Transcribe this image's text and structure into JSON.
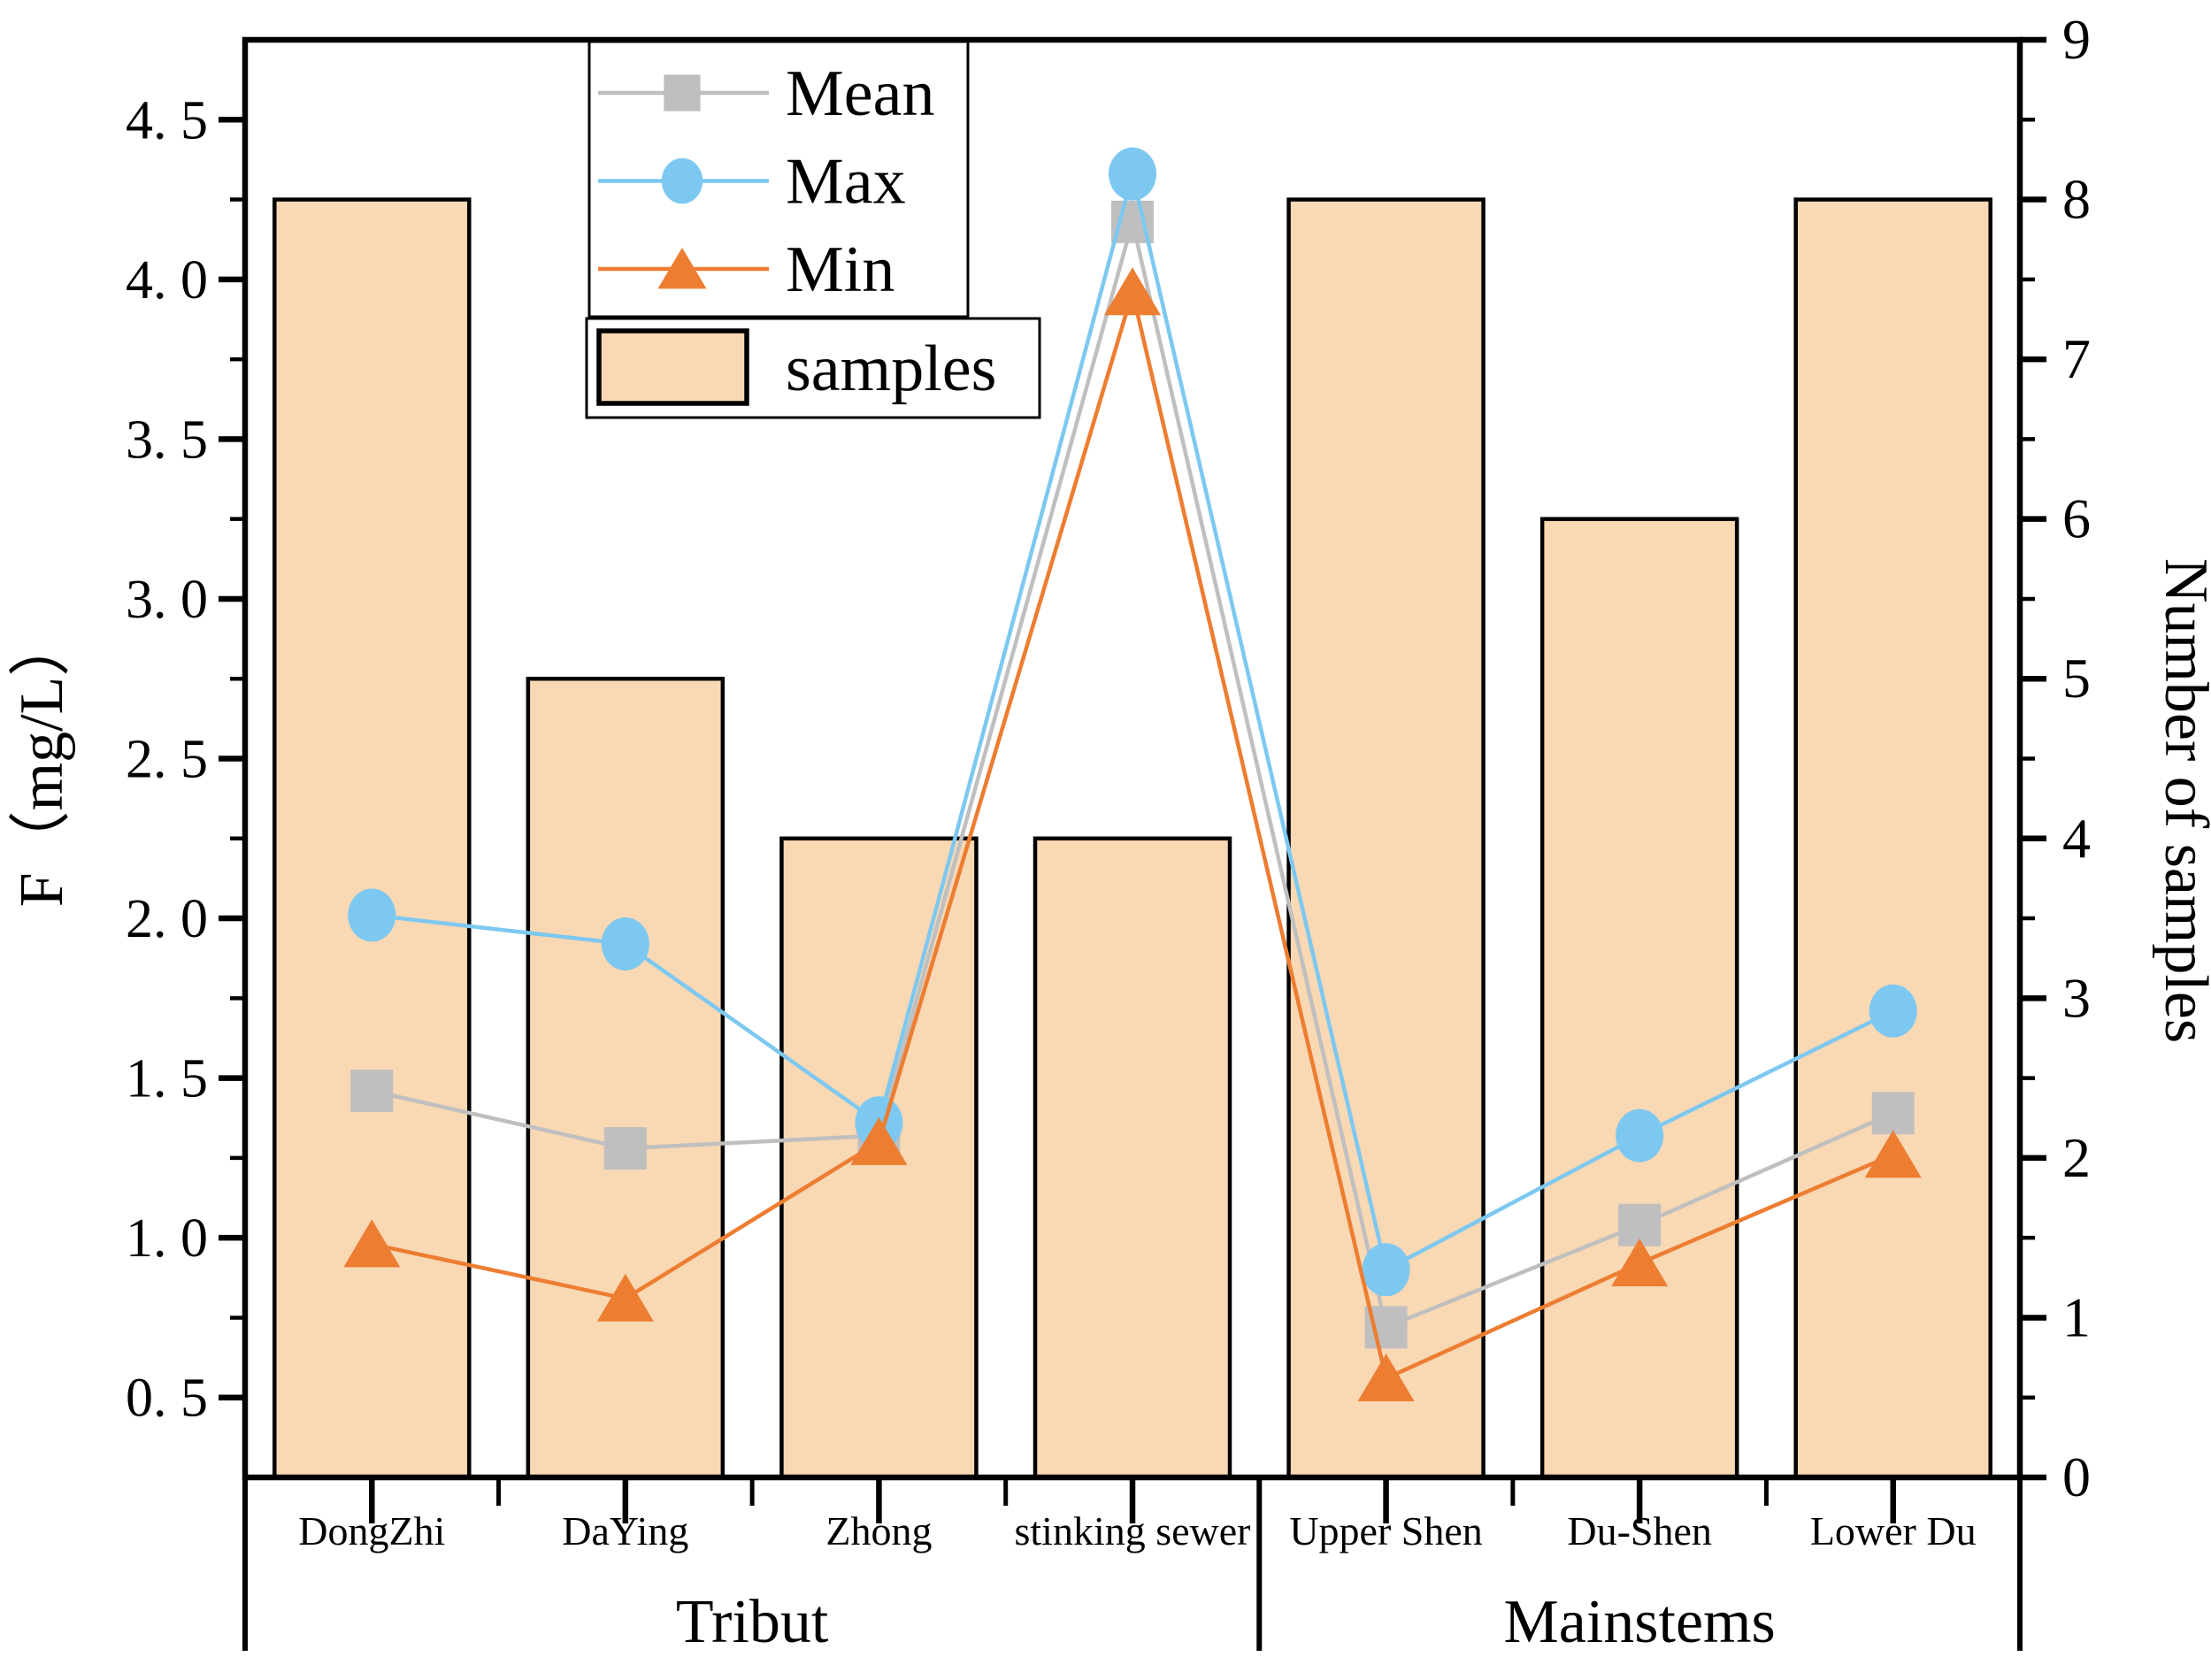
{
  "chart_data": {
    "type": "bar",
    "subtype": "composite-bar-line",
    "title": "",
    "categories": [
      "DongZhi",
      "DaYing",
      "Zhong",
      "stinking sewer",
      "Upper Shen",
      "Du-Shen",
      "Lower Du"
    ],
    "groups": [
      {
        "label": "Tribut",
        "from": 0,
        "to": 3
      },
      {
        "label": "Mainstems",
        "from": 4,
        "to": 6
      }
    ],
    "bar_series": {
      "name": "samples",
      "axis": "right",
      "values": [
        8,
        5,
        4,
        4,
        8,
        6,
        8
      ],
      "fill": "#F9D8B4",
      "edge": "#000000"
    },
    "line_series": [
      {
        "name": "Mean",
        "marker": "square",
        "color": "#BFBFBF",
        "axis": "left",
        "values": [
          1.46,
          1.28,
          1.32,
          4.18,
          0.72,
          1.04,
          1.39
        ]
      },
      {
        "name": "Max",
        "marker": "circle",
        "color": "#7DC8F0",
        "axis": "left",
        "values": [
          2.01,
          1.92,
          1.36,
          4.33,
          0.9,
          1.32,
          1.71
        ]
      },
      {
        "name": "Min",
        "marker": "triangle",
        "color": "#ED7D31",
        "axis": "left",
        "values": [
          0.98,
          0.81,
          1.3,
          3.96,
          0.56,
          0.92,
          1.26
        ]
      }
    ],
    "left_axis": {
      "label": "F（mg/L）",
      "min": 0.25,
      "max": 4.75,
      "major_tick_values": [
        0.5,
        1.0,
        1.5,
        2.0,
        2.5,
        3.0,
        3.5,
        4.0,
        4.5
      ],
      "major_tick_labels": [
        "0. 5",
        "1. 0",
        "1. 5",
        "2. 0",
        "2. 5",
        "3. 0",
        "3. 5",
        "4. 0",
        "4. 5"
      ],
      "minor_tick_values": [
        0.75,
        1.25,
        1.75,
        2.25,
        2.75,
        3.25,
        3.75,
        4.25
      ]
    },
    "right_axis": {
      "label": "Number of samples",
      "min": 0,
      "max": 9,
      "major_tick_values": [
        0,
        1,
        2,
        3,
        4,
        5,
        6,
        7,
        8,
        9
      ],
      "major_tick_labels": [
        "0",
        "1",
        "2",
        "3",
        "4",
        "5",
        "6",
        "7",
        "8",
        "9"
      ],
      "minor_tick_values": [
        0.5,
        1.5,
        2.5,
        3.5,
        4.5,
        5.5,
        6.5,
        7.5,
        8.5
      ]
    },
    "legend": {
      "line_entries": [
        "Mean",
        "Max",
        "Min"
      ],
      "bar_entries": [
        "samples"
      ],
      "grid": false,
      "position": "upper-left-inside"
    }
  },
  "colors": {
    "background": "#FFFFFF",
    "frame": "#000000",
    "bar_fill": "#F9D8B4",
    "mean": "#BFBFBF",
    "max": "#7DC8F0",
    "min": "#ED7D31",
    "text": "#000000"
  }
}
